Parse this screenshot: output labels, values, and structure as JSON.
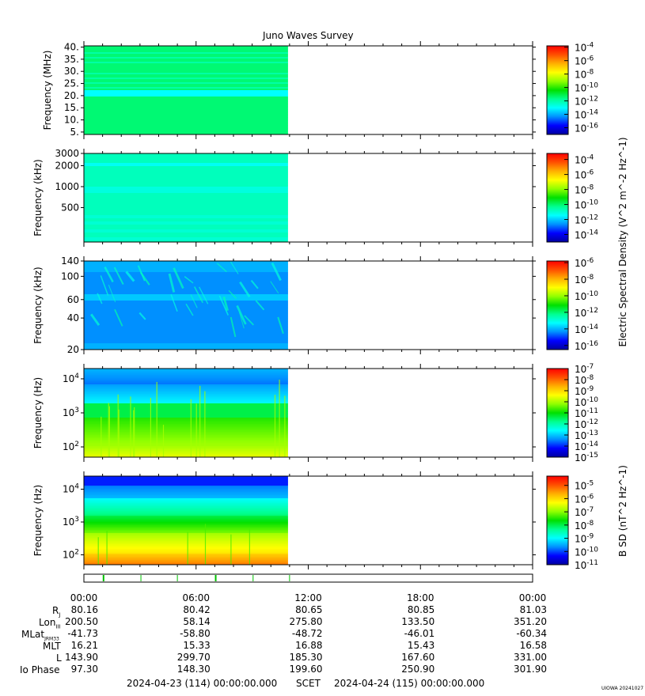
{
  "chart_data": {
    "type": "heatmap",
    "title": "Juno Waves Survey",
    "data_end_time": "10:55",
    "panels": [
      {
        "ylabel": "Frequency (MHz)",
        "yscale": "linear",
        "ylim": [
          4,
          40.5
        ],
        "yticks": [
          5,
          10,
          15,
          20,
          25,
          30,
          35,
          40
        ],
        "ytick_labels": [
          "5.",
          "10.",
          "15.",
          "20.",
          "25.",
          "30.",
          "35.",
          "40."
        ],
        "colorbar_exponents": [
          "-4",
          "-6",
          "-8",
          "-10",
          "-12",
          "-14",
          "-16"
        ],
        "colorbar_range_log10": [
          -17,
          -3.8
        ]
      },
      {
        "ylabel": "Frequency (kHz)",
        "yscale": "log",
        "ylim": [
          160,
          3000
        ],
        "yticks": [
          500,
          1000,
          2000,
          3000
        ],
        "ytick_labels": [
          "500",
          "1000",
          "2000",
          "3000"
        ],
        "colorbar_exponents": [
          "-4",
          "-6",
          "-8",
          "-10",
          "-12",
          "-14"
        ],
        "colorbar_range_log10": [
          -15,
          -3.2
        ]
      },
      {
        "ylabel": "Frequency (kHz)",
        "yscale": "log",
        "ylim": [
          20,
          140
        ],
        "yticks": [
          20,
          40,
          60,
          100,
          140
        ],
        "ytick_labels": [
          "20",
          "40",
          "60",
          "100",
          "140"
        ],
        "colorbar_exponents": [
          "-6",
          "-8",
          "-10",
          "-12",
          "-14",
          "-16"
        ],
        "colorbar_range_log10": [
          -16.5,
          -5.8
        ]
      },
      {
        "ylabel": "Frequency (Hz)",
        "yscale": "log",
        "ylim": [
          50,
          20000
        ],
        "yticks": [
          100,
          1000,
          10000
        ],
        "ytick_labels": [
          "10^2",
          "10^3",
          "10^4"
        ],
        "colorbar_exponents": [
          "-7",
          "-8",
          "-9",
          "-10",
          "-11",
          "-12",
          "-13",
          "-14",
          "-15"
        ],
        "colorbar_range_log10": [
          -15,
          -7
        ]
      },
      {
        "ylabel": "Frequency (Hz)",
        "yscale": "log",
        "ylim": [
          50,
          25000
        ],
        "yticks": [
          100,
          1000,
          10000
        ],
        "ytick_labels": [
          "10^2",
          "10^3",
          "10^4"
        ],
        "colorbar_exponents": [
          "-5",
          "-6",
          "-7",
          "-8",
          "-9",
          "-10",
          "-11"
        ],
        "colorbar_range_log10": [
          -11,
          -4.3
        ]
      }
    ],
    "colorbar_labels": {
      "electric": "Electric Spectral Density (V^2 m^-2 Hz^-1)",
      "magnetic": "B SD (nT^2 Hz^-1)"
    },
    "x_ticks": [
      "00:00",
      "06:00",
      "12:00",
      "18:00",
      "00:00"
    ],
    "ephemeris": {
      "R_J": [
        "80.16",
        "80.42",
        "80.65",
        "80.85",
        "81.03"
      ],
      "Lon_III": [
        "200.50",
        "58.14",
        "275.80",
        "133.50",
        "351.20"
      ],
      "MLat_JRM33": [
        "-41.73",
        "-58.80",
        "-48.72",
        "-46.01",
        "-60.34"
      ],
      "MLT": [
        "16.21",
        "15.33",
        "16.88",
        "15.43",
        "16.58"
      ],
      "L": [
        "143.90",
        "299.70",
        "185.30",
        "167.60",
        "331.00"
      ],
      "Io_Phase": [
        "97.30",
        "148.30",
        "199.60",
        "250.90",
        "301.90"
      ]
    },
    "mode_bar_marks_hours": [
      1.05,
      3.05,
      5.0,
      7.05,
      9.05,
      11.0
    ],
    "mode_bar_major_marks_hours": [
      1.05,
      7.05
    ],
    "time_start": "2024-04-23 (114) 00:00:00.000",
    "time_label": "SCET",
    "time_end": "2024-04-24 (115) 00:00:00.000",
    "footer_tag": "UIOWA 20241027"
  },
  "ephemeris_labels": {
    "rj": "R",
    "rj_sub": "J",
    "lon": "Lon",
    "lon_sub": "III",
    "mlat": "MLat",
    "mlat_sub": "JRM33",
    "mlt": "MLT",
    "l": "L",
    "io": "Io Phase"
  },
  "colors": {
    "colorbar_stops": [
      "#0000a0",
      "#0000ff",
      "#0090ff",
      "#00ffff",
      "#00ff90",
      "#00e000",
      "#90ff00",
      "#ffff00",
      "#ffb000",
      "#ff5000",
      "#ff0000"
    ],
    "mode_mark": "#00c000"
  }
}
